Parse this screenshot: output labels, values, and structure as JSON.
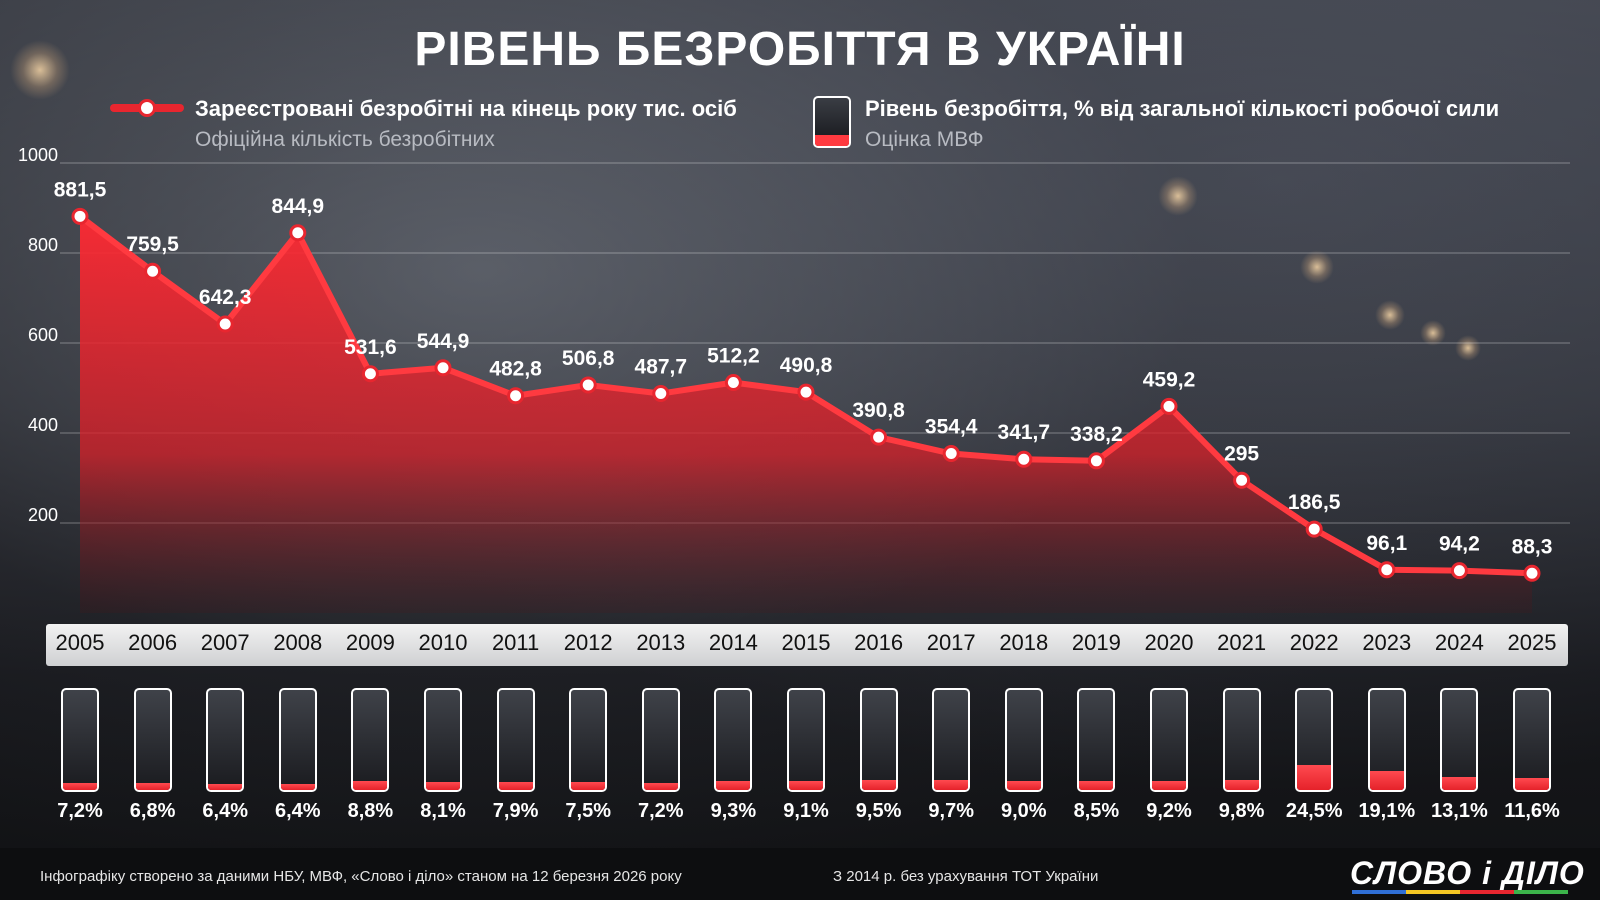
{
  "title": "РІВЕНЬ БЕЗРОБІТТЯ В УКРАЇНІ",
  "legend": {
    "line_main": "Зареєстровані безробітні на кінець року тис. осіб",
    "line_sub": "Офіційна кількість безробітних",
    "bar_main": "Рівень безробіття, % від загальної кількості робочої сили",
    "bar_sub": "Оцінка МВФ"
  },
  "footer": {
    "source": "Інфографіку створено за даними НБУ, МВФ, «Слово і діло» станом на 12 березня 2026 року",
    "note": "З 2014 р. без урахування ТОТ України",
    "logo": "СЛОВО і ДІЛО"
  },
  "colors": {
    "accent": "#e8262f",
    "fill": "#ff3a40",
    "background": "#1b1d22"
  },
  "chart_data": [
    {
      "type": "area",
      "title": "Зареєстровані безробітні на кінець року тис. осіб",
      "ylim": [
        0,
        1000
      ],
      "yticks": [
        "200",
        "400",
        "600",
        "800",
        "1000"
      ],
      "categories": [
        "2005",
        "2006",
        "2007",
        "2008",
        "2009",
        "2010",
        "2011",
        "2012",
        "2013",
        "2014",
        "2015",
        "2016",
        "2017",
        "2018",
        "2019",
        "2020",
        "2021",
        "2022",
        "2023",
        "2024",
        "2025"
      ],
      "values": [
        881.5,
        759.5,
        642.3,
        844.9,
        531.6,
        544.9,
        482.8,
        506.8,
        487.7,
        512.2,
        490.8,
        390.8,
        354.4,
        341.7,
        338.2,
        459.2,
        295,
        186.5,
        96.1,
        94.2,
        88.3
      ],
      "labels": [
        "881,5",
        "759,5",
        "642,3",
        "844,9",
        "531,6",
        "544,9",
        "482,8",
        "506,8",
        "487,7",
        "512,2",
        "490,8",
        "390,8",
        "354,4",
        "341,7",
        "338,2",
        "459,2",
        "295",
        "186,5",
        "96,1",
        "94,2",
        "88,3"
      ]
    },
    {
      "type": "bar",
      "title": "Рівень безробіття, % від загальної кількості робочої сили",
      "categories": [
        "2005",
        "2006",
        "2007",
        "2008",
        "2009",
        "2010",
        "2011",
        "2012",
        "2013",
        "2014",
        "2015",
        "2016",
        "2017",
        "2018",
        "2019",
        "2020",
        "2021",
        "2022",
        "2023",
        "2024",
        "2025"
      ],
      "values": [
        7.2,
        6.8,
        6.4,
        6.4,
        8.8,
        8.1,
        7.9,
        7.5,
        7.2,
        9.3,
        9.1,
        9.5,
        9.7,
        9.0,
        8.5,
        9.2,
        9.8,
        24.5,
        19.1,
        13.1,
        11.6
      ],
      "labels": [
        "7,2%",
        "6,8%",
        "6,4%",
        "6,4%",
        "8,8%",
        "8,1%",
        "7,9%",
        "7,5%",
        "7,2%",
        "9,3%",
        "9,1%",
        "9,5%",
        "9,7%",
        "9,0%",
        "8,5%",
        "9,2%",
        "9,8%",
        "24,5%",
        "19,1%",
        "13,1%",
        "11,6%"
      ]
    }
  ]
}
